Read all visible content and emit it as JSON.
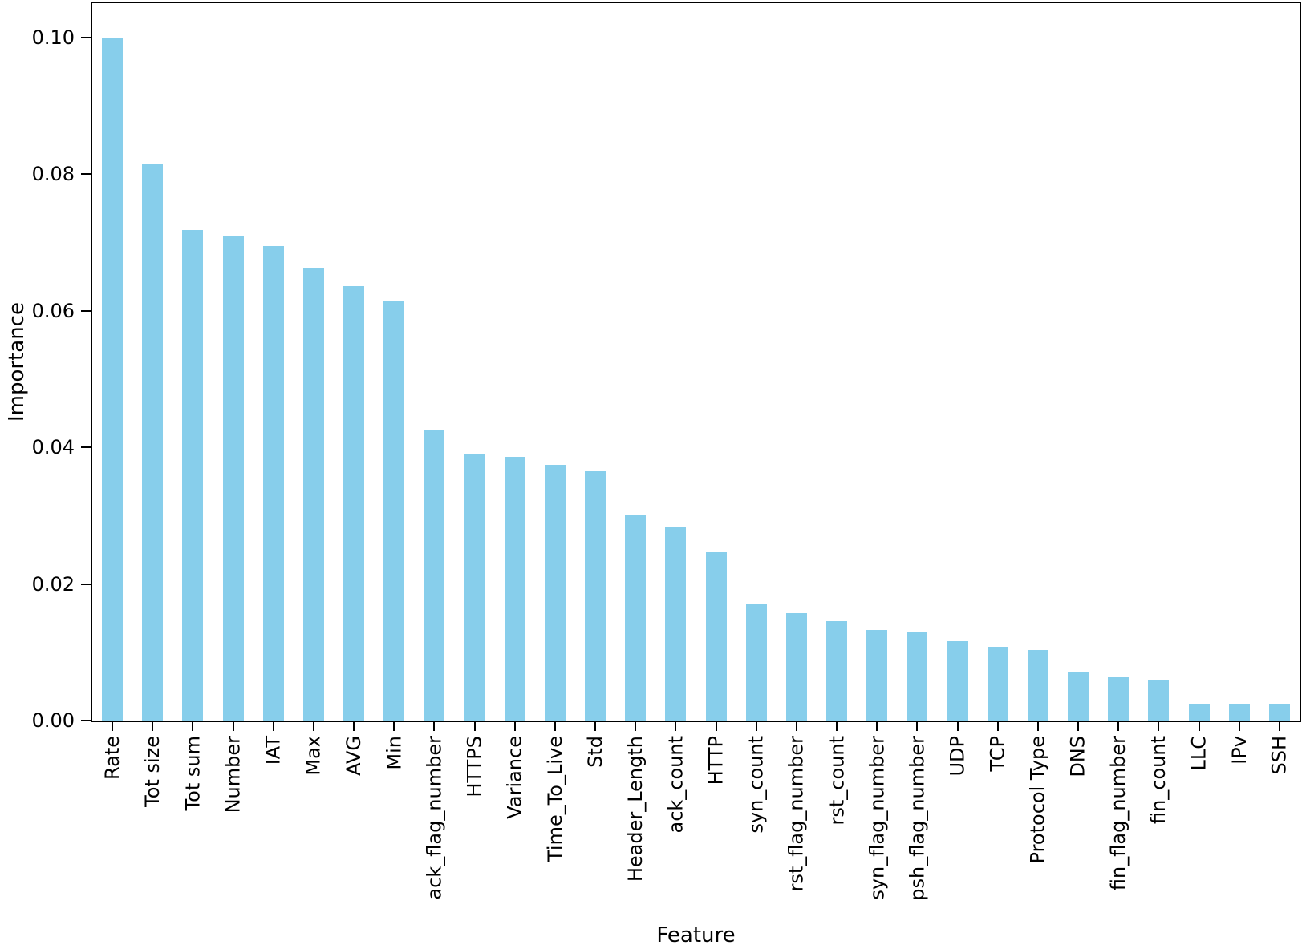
{
  "chart_data": {
    "type": "bar",
    "title": "",
    "xlabel": "Feature",
    "ylabel": "Importance",
    "categories": [
      "Rate",
      "Tot size",
      "Tot sum",
      "Number",
      "IAT",
      "Max",
      "AVG",
      "Min",
      "ack_flag_number",
      "HTTPS",
      "Variance",
      "Time_To_Live",
      "Std",
      "Header_Length",
      "ack_count",
      "HTTP",
      "syn_count",
      "rst_flag_number",
      "rst_count",
      "syn_flag_number",
      "psh_flag_number",
      "UDP",
      "TCP",
      "Protocol Type",
      "DNS",
      "fin_flag_number",
      "fin_count",
      "LLC",
      "IPv",
      "SSH"
    ],
    "values": [
      0.1,
      0.0815,
      0.0718,
      0.0709,
      0.0695,
      0.0663,
      0.0636,
      0.0615,
      0.0425,
      0.0389,
      0.0386,
      0.0374,
      0.0365,
      0.0302,
      0.0284,
      0.0246,
      0.0171,
      0.0157,
      0.0146,
      0.0133,
      0.013,
      0.0116,
      0.0108,
      0.0103,
      0.0071,
      0.0063,
      0.006,
      0.0025,
      0.0025,
      0.0025
    ],
    "ylim": [
      0,
      0.105
    ],
    "yticks": [
      0.0,
      0.02,
      0.04,
      0.06,
      0.08,
      0.1
    ],
    "ytick_labels": [
      "0.00",
      "0.02",
      "0.04",
      "0.06",
      "0.08",
      "0.10"
    ],
    "bar_color": "#87CEEB",
    "axis_color": "#000000",
    "grid": false,
    "legend_position": "none"
  }
}
